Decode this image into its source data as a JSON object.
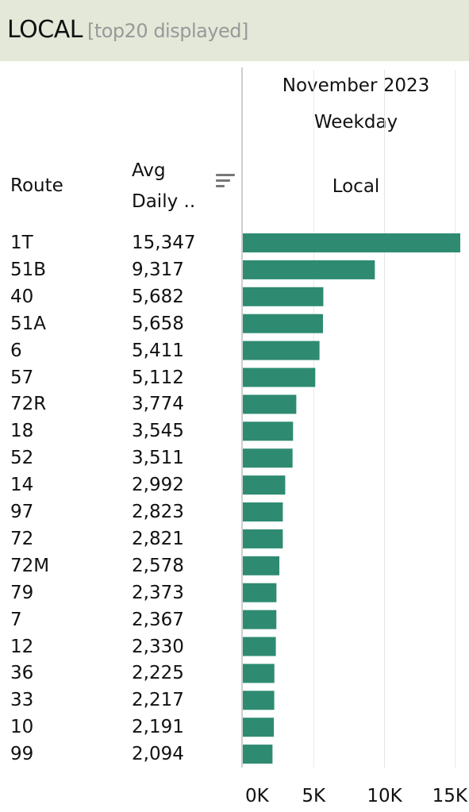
{
  "header": {
    "title": "LOCAL",
    "subtitle": "[top20 displayed]"
  },
  "columns": {
    "route": "Route",
    "avg_line1": "Avg",
    "avg_line2": "Daily .."
  },
  "pane": {
    "month": "November 2023",
    "day_type": "Weekday",
    "category": "Local"
  },
  "colors": {
    "bar": "#2e8b72",
    "header_bg": "#e3e8d8",
    "grid": "#e6e6e6"
  },
  "icons": {
    "sort": "sort-descending-icon"
  },
  "chart_data": {
    "type": "bar",
    "orientation": "horizontal",
    "categories": [
      "1T",
      "51B",
      "40",
      "51A",
      "6",
      "57",
      "72R",
      "18",
      "52",
      "14",
      "97",
      "72",
      "72M",
      "79",
      "7",
      "12",
      "36",
      "33",
      "10",
      "99"
    ],
    "value_labels": [
      "15,347",
      "9,317",
      "5,682",
      "5,658",
      "5,411",
      "5,112",
      "3,774",
      "3,545",
      "3,511",
      "2,992",
      "2,823",
      "2,821",
      "2,578",
      "2,373",
      "2,367",
      "2,330",
      "2,225",
      "2,217",
      "2,191",
      "2,094"
    ],
    "series": [
      {
        "values": [
          15347,
          9317,
          5682,
          5658,
          5411,
          5112,
          3774,
          3545,
          3511,
          2992,
          2823,
          2821,
          2578,
          2373,
          2367,
          2330,
          2225,
          2217,
          2191,
          2094
        ]
      }
    ],
    "xlim": [
      0,
      15347
    ],
    "x_ticks": [
      0,
      5000,
      10000,
      15000
    ],
    "x_tick_labels": [
      "0K",
      "5K",
      "10K",
      "15K"
    ],
    "grid": "vertical",
    "xlabel": "",
    "ylabel": ""
  }
}
